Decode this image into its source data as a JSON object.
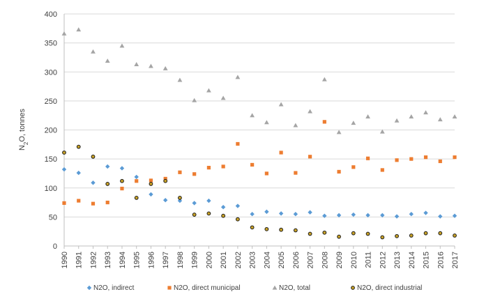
{
  "chart_data": {
    "type": "scatter",
    "ylabel_main": "N",
    "ylabel_sub": "2",
    "ylabel_rest": "O, tonnes",
    "ylim": [
      0,
      400
    ],
    "yticks": [
      "0",
      "50",
      "100",
      "150",
      "200",
      "250",
      "300",
      "350",
      "400"
    ],
    "grid": "horizontal",
    "legend_position": "bottom",
    "categories": [
      "1990",
      "1991",
      "1992",
      "1993",
      "1994",
      "1995",
      "1996",
      "1997",
      "1998",
      "1999",
      "2000",
      "2001",
      "2002",
      "2003",
      "2004",
      "2005",
      "2006",
      "2007",
      "2008",
      "2009",
      "2010",
      "2011",
      "2012",
      "2013",
      "2014",
      "2015",
      "2016",
      "2017"
    ],
    "series": [
      {
        "name": "N2O, indirect",
        "marker": "diamond",
        "color": "#5B9BD5",
        "values": [
          132,
          126,
          109,
          137,
          134,
          119,
          89,
          79,
          78,
          74,
          78,
          67,
          69,
          55,
          59,
          56,
          55,
          58,
          52,
          53,
          54,
          53,
          53,
          51,
          55,
          57,
          51,
          52
        ]
      },
      {
        "name": "N2O, direct municipal",
        "marker": "square",
        "color": "#ED7D31",
        "values": [
          74,
          78,
          73,
          75,
          99,
          112,
          113,
          116,
          127,
          124,
          135,
          137,
          176,
          140,
          125,
          161,
          126,
          154,
          214,
          128,
          136,
          151,
          131,
          148,
          150,
          153,
          146,
          153
        ]
      },
      {
        "name": "N2O, total",
        "marker": "triangle",
        "color": "#A5A5A5",
        "values": [
          366,
          373,
          335,
          319,
          345,
          313,
          310,
          306,
          286,
          251,
          268,
          255,
          291,
          225,
          213,
          244,
          208,
          232,
          287,
          196,
          212,
          223,
          197,
          216,
          223,
          230,
          218,
          223
        ]
      },
      {
        "name": "N2O, direct industrial",
        "marker": "circle",
        "color": "#C9A227",
        "edge": "#1a1a1a",
        "values": [
          161,
          171,
          154,
          107,
          112,
          83,
          107,
          112,
          83,
          54,
          56,
          52,
          46,
          32,
          29,
          28,
          27,
          21,
          23,
          16,
          22,
          21,
          15,
          17,
          18,
          22,
          22,
          18
        ]
      }
    ]
  }
}
